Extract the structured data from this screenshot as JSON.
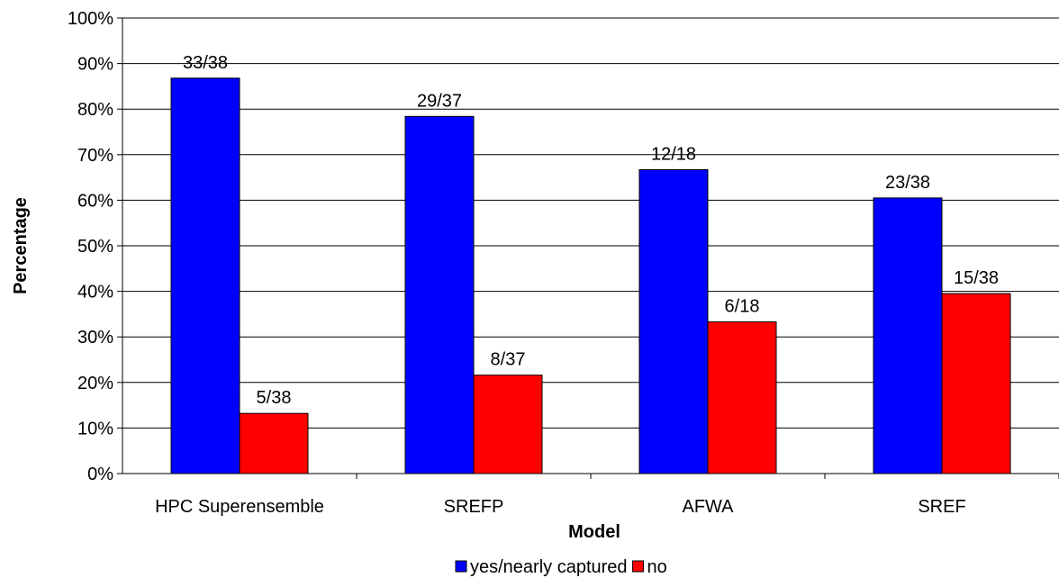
{
  "chart_data": {
    "type": "bar",
    "title": "",
    "xlabel": "Model",
    "ylabel": "Percentage",
    "categories": [
      "HPC Superensemble",
      "SREFP",
      "AFWA",
      "SREF"
    ],
    "series": [
      {
        "name": "yes/nearly captured",
        "color": "#0000ff",
        "values": [
          86.8,
          78.4,
          66.7,
          60.5
        ],
        "data_labels": [
          "33/38",
          "29/37",
          "12/18",
          "23/38"
        ]
      },
      {
        "name": "no",
        "color": "#ff0000",
        "values": [
          13.2,
          21.6,
          33.3,
          39.5
        ],
        "data_labels": [
          "5/38",
          "8/37",
          "6/18",
          "15/38"
        ]
      }
    ],
    "ylim": [
      0,
      100
    ],
    "yticks": [
      0,
      10,
      20,
      30,
      40,
      50,
      60,
      70,
      80,
      90,
      100
    ],
    "ytick_labels": [
      "0%",
      "10%",
      "20%",
      "30%",
      "40%",
      "50%",
      "60%",
      "70%",
      "80%",
      "90%",
      "100%"
    ],
    "grid": true,
    "legend_position": "bottom"
  }
}
